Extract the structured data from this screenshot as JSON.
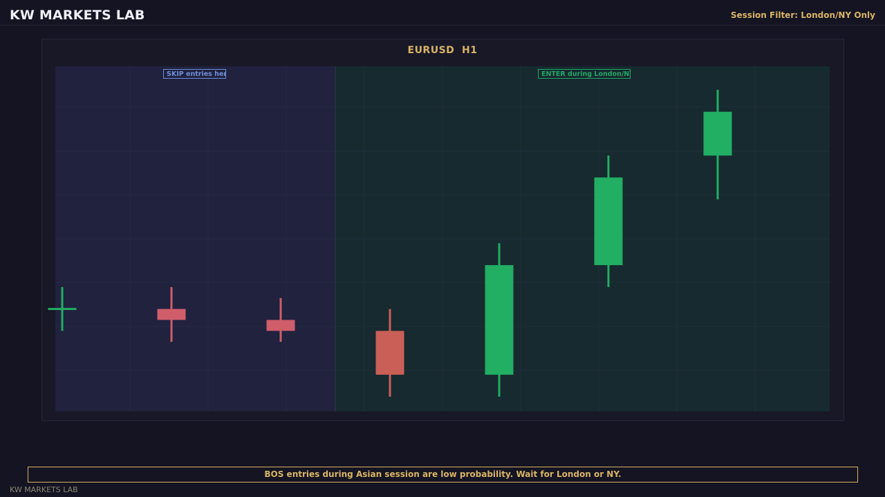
{
  "header": {
    "brand": "KW MARKETS LAB",
    "session_filter": "Session Filter: London/NY Only"
  },
  "chart": {
    "title": "EURUSD  H1",
    "zone_skip_label": "SKIP entries here",
    "zone_enter_label": "ENTER during London/NY"
  },
  "chart_data": {
    "type": "candlestick",
    "title": "EURUSD  H1",
    "xlabel": "",
    "ylabel": "",
    "ylim": [
      0,
      7.8
    ],
    "grid": true,
    "candles": [
      {
        "open": 2.4,
        "high": 2.9,
        "low": 1.9,
        "close": 2.4
      },
      {
        "open": 2.4,
        "high": 2.9,
        "low": 1.65,
        "close": 2.15
      },
      {
        "open": 2.15,
        "high": 2.65,
        "low": 1.65,
        "close": 1.9
      },
      {
        "open": 1.9,
        "high": 2.4,
        "low": 0.4,
        "close": 0.9
      },
      {
        "open": 0.9,
        "high": 3.9,
        "low": 0.4,
        "close": 3.4
      },
      {
        "open": 3.4,
        "high": 5.9,
        "low": 2.9,
        "close": 5.4
      },
      {
        "open": 5.9,
        "high": 7.4,
        "low": 4.9,
        "close": 6.9
      }
    ],
    "zones": [
      {
        "label": "SKIP entries here",
        "session": "Asian",
        "candles": [
          0,
          1,
          2
        ]
      },
      {
        "label": "ENTER during London/NY",
        "session": "London/NY",
        "candles": [
          3,
          4,
          5,
          6
        ]
      }
    ]
  },
  "colors": {
    "bullish": "#22ae63",
    "bearish_doji": "#d05d6a",
    "bearish": "#ca5f57",
    "skip_zone": "#20223e",
    "enter_zone": "#162a2f",
    "grid": "#2a2f48",
    "accent": "#d9b463"
  },
  "banner": {
    "text": "BOS entries during Asian session are low probability. Wait for London or NY."
  },
  "footer": {
    "text": "KW MARKETS LAB"
  }
}
